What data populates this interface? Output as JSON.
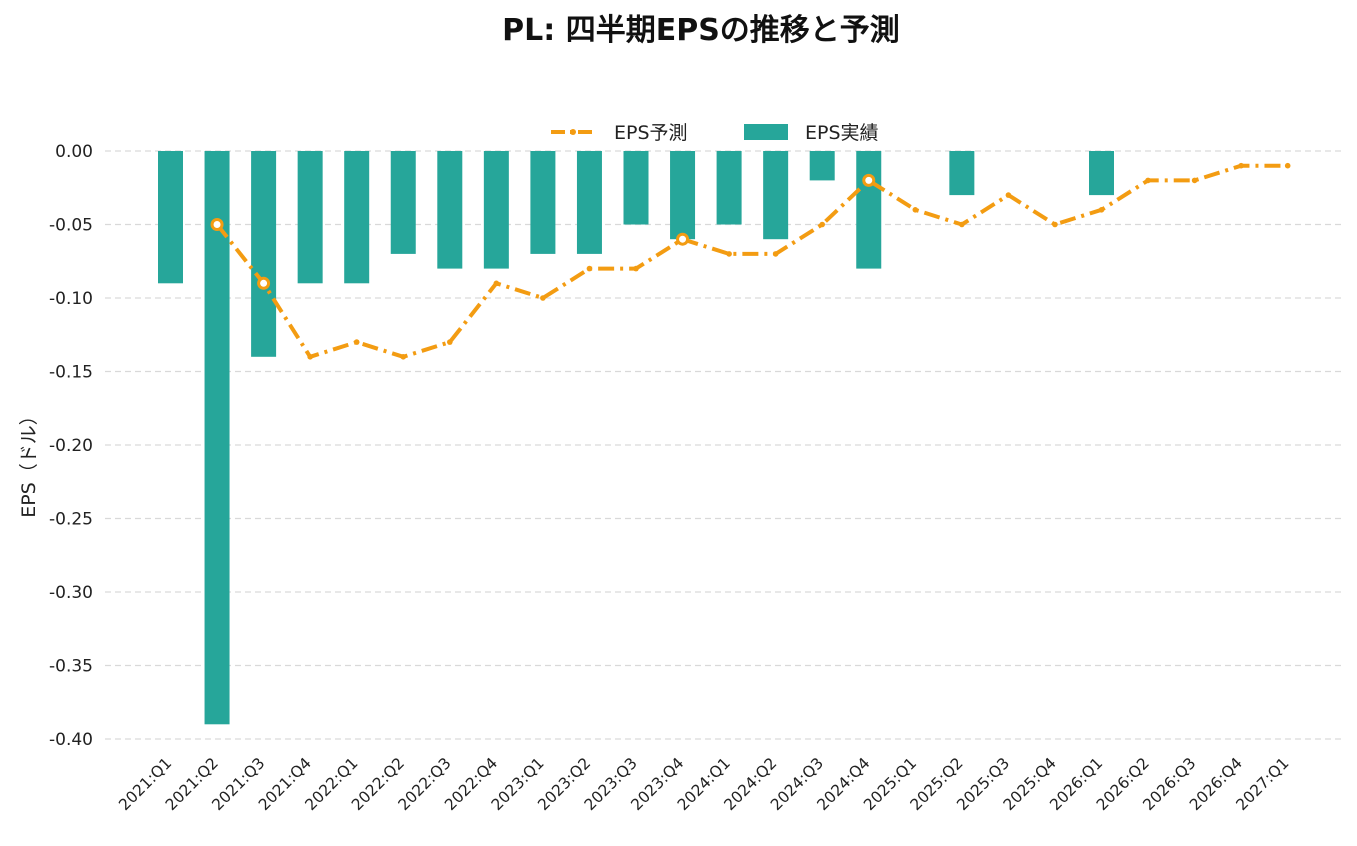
{
  "chart_data": {
    "type": "bar",
    "title": "PL: 四半期EPSの推移と予測",
    "xlabel": "",
    "ylabel": "EPS（ドル）",
    "ylim": [
      -0.4,
      0.0
    ],
    "yticks": [
      "0.00",
      "-0.05",
      "-0.10",
      "-0.15",
      "-0.20",
      "-0.25",
      "-0.30",
      "-0.35",
      "-0.40"
    ],
    "ytick_values": [
      0.0,
      -0.05,
      -0.1,
      -0.15,
      -0.2,
      -0.25,
      -0.3,
      -0.35,
      -0.4
    ],
    "grid": true,
    "legend_position": "top-center",
    "categories": [
      "2021:Q1",
      "2021:Q2",
      "2021:Q3",
      "2021:Q4",
      "2022:Q1",
      "2022:Q2",
      "2022:Q3",
      "2022:Q4",
      "2023:Q1",
      "2023:Q2",
      "2023:Q3",
      "2023:Q4",
      "2024:Q1",
      "2024:Q2",
      "2024:Q3",
      "2024:Q4",
      "2025:Q1",
      "2025:Q2",
      "2025:Q3",
      "2025:Q4",
      "2026:Q1",
      "2026:Q2",
      "2026:Q3",
      "2026:Q4",
      "2027:Q1"
    ],
    "series": [
      {
        "name": "EPS予測",
        "type": "line",
        "color": "#f39c12",
        "values": [
          null,
          -0.05,
          -0.09,
          -0.14,
          -0.13,
          -0.14,
          -0.13,
          -0.09,
          -0.1,
          -0.08,
          -0.08,
          -0.06,
          -0.07,
          -0.07,
          -0.05,
          -0.02,
          -0.04,
          -0.05,
          -0.03,
          -0.05,
          -0.04,
          -0.02,
          -0.02,
          -0.01,
          -0.01
        ]
      },
      {
        "name": "EPS実績",
        "type": "bar",
        "color": "#26a69a",
        "values": [
          -0.09,
          -0.39,
          -0.14,
          -0.09,
          -0.09,
          -0.07,
          -0.08,
          -0.08,
          -0.07,
          -0.07,
          -0.05,
          -0.06,
          -0.05,
          -0.06,
          -0.02,
          -0.08,
          null,
          -0.03,
          null,
          null,
          -0.03,
          null,
          null,
          null,
          null
        ]
      }
    ],
    "highlighted_points": [
      "2021:Q2",
      "2021:Q3",
      "2023:Q4",
      "2024:Q4"
    ]
  }
}
